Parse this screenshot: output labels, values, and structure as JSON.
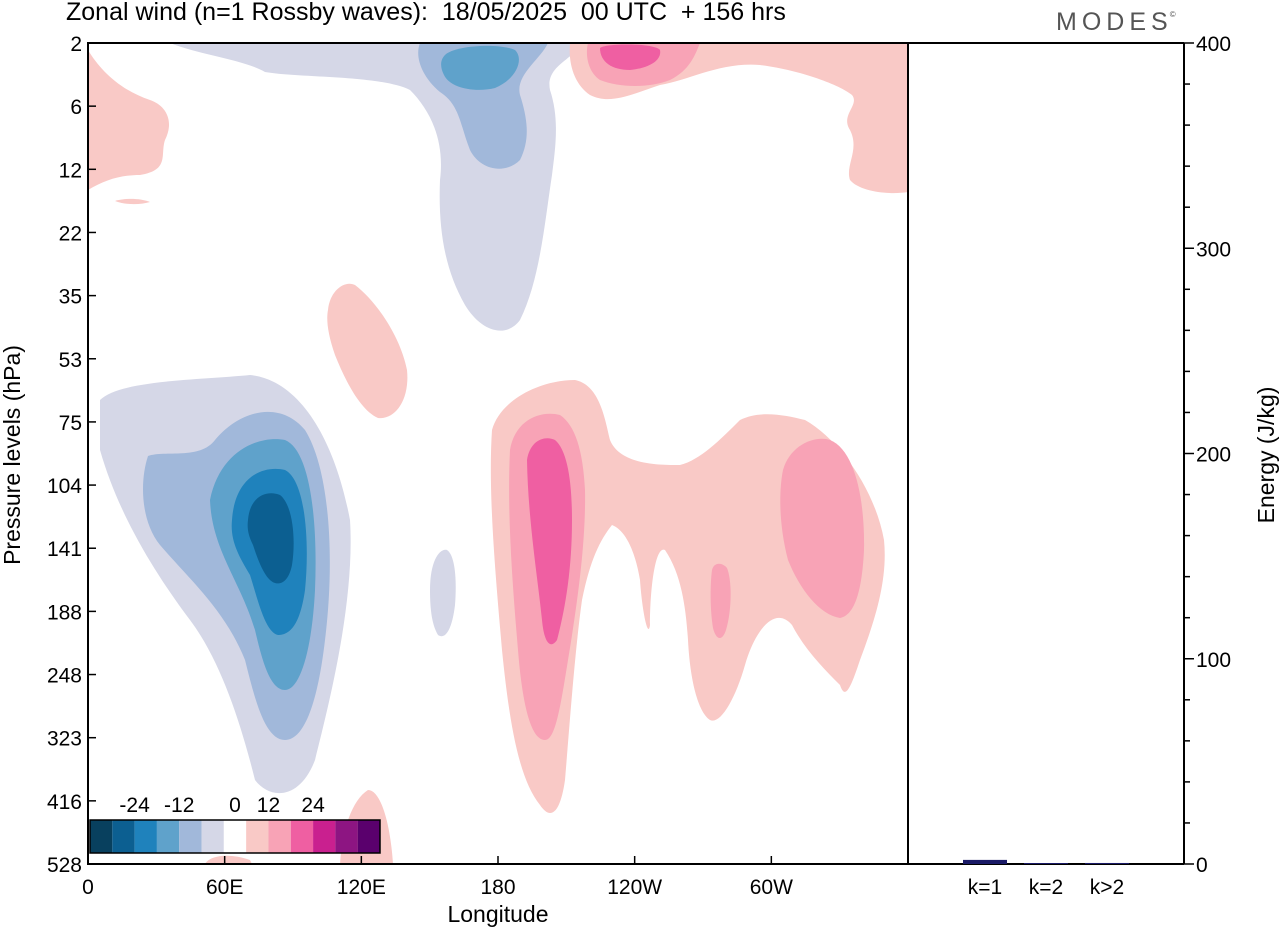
{
  "header": {
    "title": "Zonal wind (n=1 Rossby waves):  18/05/2025  00 UTC  + 156 hrs",
    "logo": "MODES",
    "logo_mark": "©"
  },
  "chart_data": [
    {
      "type": "heatmap",
      "title": "Zonal wind (n=1 Rossby waves):  18/05/2025  00 UTC  + 156 hrs",
      "xlabel": "Longitude",
      "ylabel": "Pressure levels (hPa)",
      "x_ticks": [
        "0",
        "60E",
        "120E",
        "180",
        "120W",
        "60W"
      ],
      "x_tick_degrees": [
        0,
        60,
        120,
        180,
        240,
        300
      ],
      "xlim": [
        0,
        360
      ],
      "y_ticks": [
        "2",
        "6",
        "12",
        "22",
        "35",
        "53",
        "75",
        "104",
        "141",
        "188",
        "248",
        "323",
        "416",
        "528"
      ],
      "y_scale": "pressure levels, inverted",
      "legend": {
        "placement": "bottom-left",
        "labels": [
          "-24",
          "-12",
          "0",
          "12",
          "24"
        ],
        "levels": [
          -30,
          -24,
          -18,
          -12,
          -6,
          0,
          6,
          12,
          18,
          24,
          30
        ],
        "colors": [
          "#08405e",
          "#0c5f91",
          "#1f82bc",
          "#5fa2cb",
          "#a1b8da",
          "#d5d7e7",
          "#ffffff",
          "#f9c9c6",
          "#f8a3b6",
          "#ef5fa2",
          "#c9208f",
          "#8d1582",
          "#5a006d"
        ]
      },
      "features": [
        {
          "label": "negative core",
          "lon": 78,
          "level": "141",
          "value": -30
        },
        {
          "label": "negative upper-stratosphere",
          "lon": 160,
          "level": "2",
          "value": -18
        },
        {
          "label": "positive core",
          "lon": 200,
          "level": "141",
          "value": 18
        },
        {
          "label": "positive upper-stratosphere",
          "lon": 235,
          "level": "2",
          "value": 18
        },
        {
          "label": "positive",
          "lon": 310,
          "level": "141",
          "value": 12
        }
      ]
    },
    {
      "type": "bar",
      "categories": [
        "k=1",
        "k=2",
        "k>2"
      ],
      "values": [
        2,
        0.3,
        0.5
      ],
      "ylabel": "Energy (J/kg)",
      "ylim": [
        0,
        400
      ],
      "y_ticks": [
        0,
        100,
        200,
        300,
        400
      ],
      "bar_color": "#1a1a66"
    }
  ]
}
